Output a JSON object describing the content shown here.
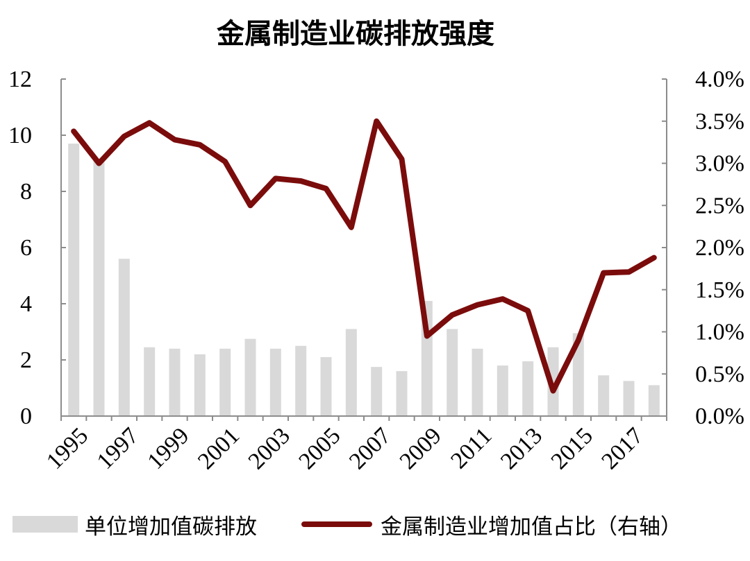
{
  "chart_data": {
    "type": "bar+line",
    "title": "金属制造业碳排放强度",
    "categories": [
      "1995",
      "1996",
      "1997",
      "1998",
      "1999",
      "2000",
      "2001",
      "2002",
      "2003",
      "2004",
      "2005",
      "2006",
      "2007",
      "2008",
      "2009",
      "2010",
      "2011",
      "2012",
      "2013",
      "2014",
      "2015",
      "2016",
      "2017",
      "2018"
    ],
    "x_tick_labels": [
      "1995",
      "1997",
      "1999",
      "2001",
      "2003",
      "2005",
      "2007",
      "2009",
      "2011",
      "2013",
      "2015",
      "2017"
    ],
    "series": [
      {
        "name": "单位增加值碳排放",
        "type": "bar",
        "axis": "left",
        "color": "#d9d9d9",
        "values": [
          9.7,
          9.1,
          5.6,
          2.45,
          2.4,
          2.2,
          2.4,
          2.75,
          2.4,
          2.5,
          2.1,
          3.1,
          1.75,
          1.6,
          4.1,
          3.1,
          2.4,
          1.8,
          1.95,
          2.45,
          2.95,
          1.45,
          1.25,
          1.1
        ]
      },
      {
        "name": "金属制造业增加值占比（右轴）",
        "type": "line",
        "axis": "right",
        "color": "#7b0c0c",
        "values": [
          3.38,
          3.0,
          3.32,
          3.48,
          3.28,
          3.22,
          3.02,
          2.5,
          2.82,
          2.79,
          2.7,
          2.24,
          3.5,
          3.05,
          0.95,
          1.2,
          1.32,
          1.39,
          1.25,
          0.3,
          0.9,
          1.7,
          1.71,
          1.88
        ]
      }
    ],
    "y_left": {
      "lim": [
        0,
        12
      ],
      "ticks": [
        "0",
        "2",
        "4",
        "6",
        "8",
        "10",
        "12"
      ]
    },
    "y_right": {
      "lim": [
        0,
        4.0
      ],
      "ticks": [
        "0.0%",
        "0.5%",
        "1.0%",
        "1.5%",
        "2.0%",
        "2.5%",
        "3.0%",
        "3.5%",
        "4.0%"
      ]
    },
    "grid": false,
    "legend_position": "bottom"
  }
}
